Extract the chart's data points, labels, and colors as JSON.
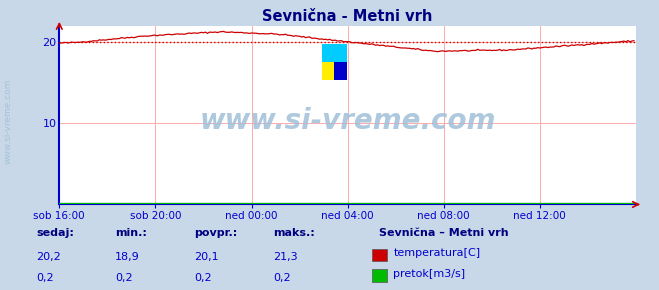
{
  "title": "Sevnična - Metni vrh",
  "plot_bg_color": "#ffffff",
  "outer_bg_color": "#c8d8e8",
  "x_labels": [
    "sob 16:00",
    "sob 20:00",
    "ned 00:00",
    "ned 04:00",
    "ned 08:00",
    "ned 12:00"
  ],
  "x_ticks": [
    0,
    48,
    96,
    144,
    192,
    240
  ],
  "x_max": 288,
  "y_ticks": [
    10,
    20
  ],
  "y_max": 22,
  "y_min": 0,
  "temp_avg_line": 20.0,
  "temp_color": "#cc0000",
  "flow_color": "#00bb00",
  "axis_color": "#0000cc",
  "grid_color": "#ffaaaa",
  "title_color": "#000080",
  "label_color": "#0000cc",
  "stats_label_color": "#000080",
  "stats_value_color": "#0000cc",
  "watermark_color": "#a0c0d8",
  "watermark_text": "www.si-vreme.com",
  "stats_headers": [
    "sedaj:",
    "min.:",
    "povpr.:",
    "maks.:"
  ],
  "stats_temp": [
    "20,2",
    "18,9",
    "20,1",
    "21,3"
  ],
  "stats_flow": [
    "0,2",
    "0,2",
    "0,2",
    "0,2"
  ],
  "legend_title": "Sevnična – Metni vrh",
  "legend_items": [
    "temperatura[C]",
    "pretok[m3/s]"
  ],
  "legend_colors": [
    "#cc0000",
    "#00bb00"
  ]
}
